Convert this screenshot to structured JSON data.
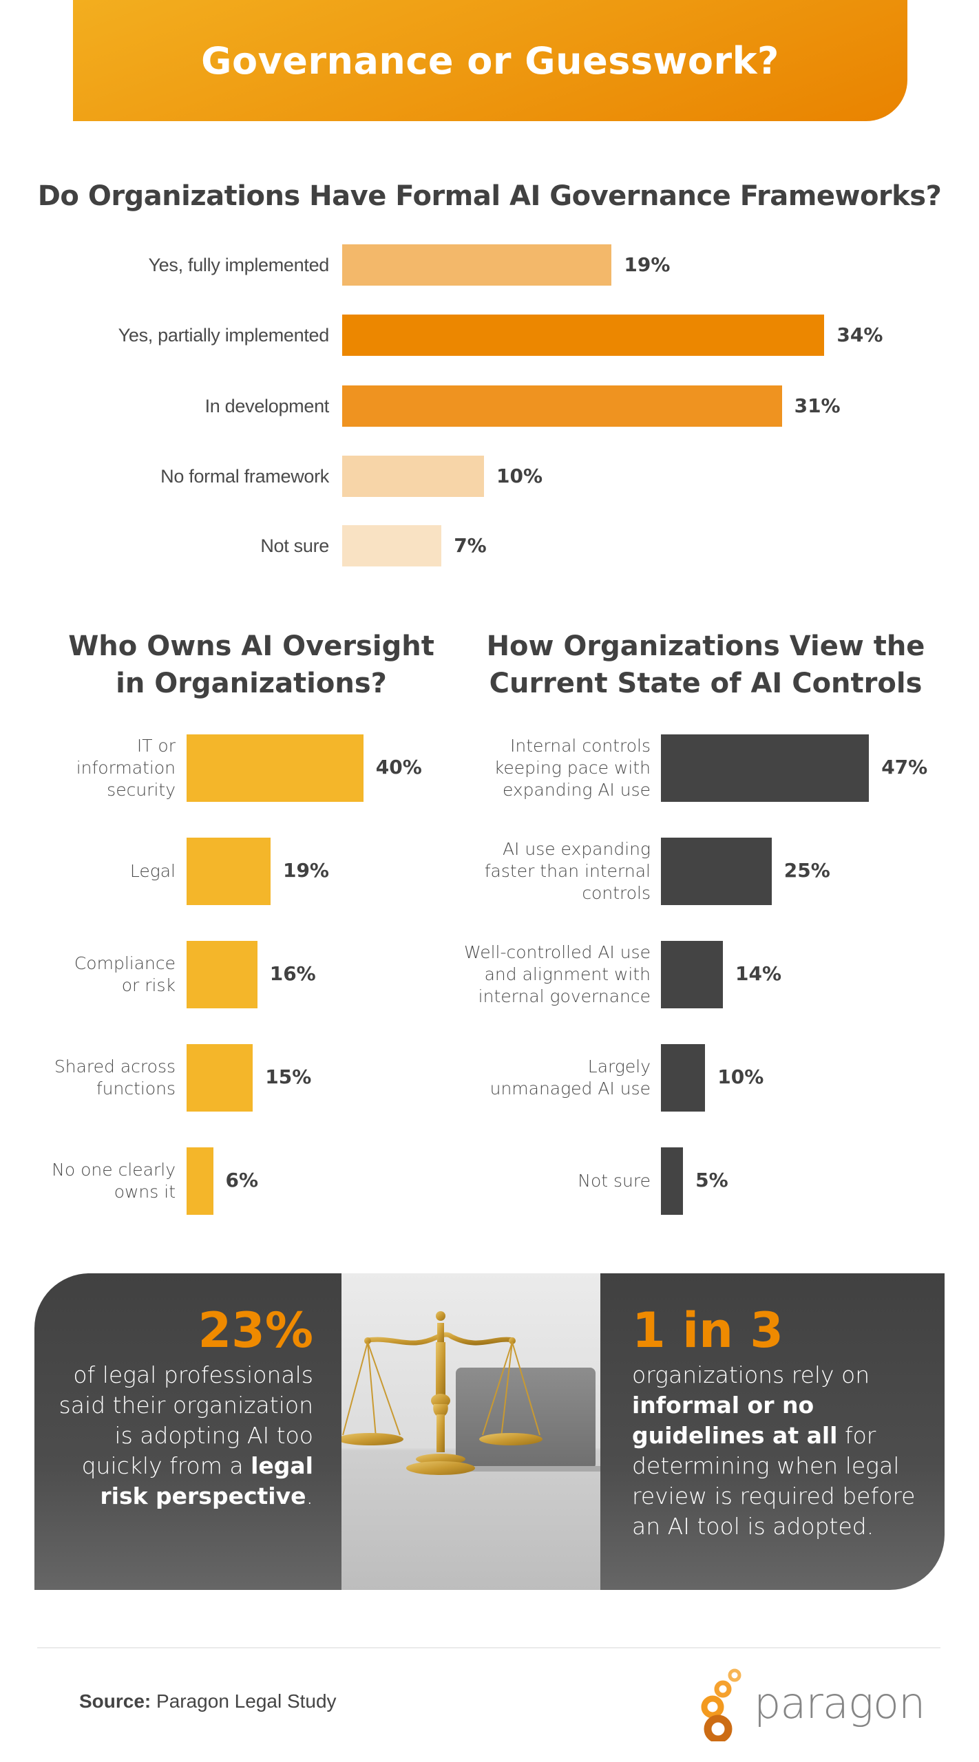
{
  "header": {
    "title": "Governance or Guesswork?",
    "gradient_start": "#f3ae1f",
    "gradient_end": "#e98300"
  },
  "chart_data": [
    {
      "type": "bar",
      "orientation": "horizontal",
      "title": "Do Organizations Have Formal AI Governance Frameworks?",
      "categories": [
        "Yes, fully implemented",
        "Yes, partially implemented",
        "In development",
        "No formal framework",
        "Not sure"
      ],
      "values": [
        19,
        34,
        31,
        10,
        7
      ],
      "value_labels": [
        "19%",
        "34%",
        "31%",
        "10%",
        "7%"
      ],
      "colors": [
        "#f3b86a",
        "#ec8700",
        "#ef9320",
        "#f7d5a8",
        "#f9e2c3"
      ],
      "xlabel": "",
      "ylabel": "",
      "unit": "%",
      "grid": false,
      "legend": "none"
    },
    {
      "type": "bar",
      "orientation": "horizontal",
      "title": "Who Owns AI Oversight in Organizations?",
      "categories": [
        "IT or information security",
        "Legal",
        "Compliance or risk",
        "Shared across functions",
        "No one clearly owns it"
      ],
      "values": [
        40,
        19,
        16,
        15,
        6
      ],
      "value_labels": [
        "40%",
        "19%",
        "16%",
        "15%",
        "6%"
      ],
      "color": "#f4b62a",
      "xlabel": "",
      "ylabel": "",
      "unit": "%",
      "grid": false,
      "legend": "none"
    },
    {
      "type": "bar",
      "orientation": "horizontal",
      "title": "How Organizations View the Current State of AI Controls",
      "categories": [
        "Internal controls keeping pace with expanding AI use",
        "AI use expanding faster than internal controls",
        "Well-controlled AI use and alignment with internal governance",
        "Largely unmanaged AI use",
        "Not sure"
      ],
      "values": [
        47,
        25,
        14,
        10,
        5
      ],
      "value_labels": [
        "47%",
        "25%",
        "14%",
        "10%",
        "5%"
      ],
      "color": "#444444",
      "xlabel": "",
      "ylabel": "",
      "unit": "%",
      "grid": false,
      "legend": "none"
    }
  ],
  "charts": {
    "c1": {
      "title": "Do Organizations Have Formal AI Governance Frameworks?",
      "rows": [
        {
          "label": "Yes, fully implemented",
          "value": "19%",
          "pct": 19,
          "color": "#f3b86a"
        },
        {
          "label": "Yes, partially implemented",
          "value": "34%",
          "pct": 34,
          "color": "#ec8700"
        },
        {
          "label": "In development",
          "value": "31%",
          "pct": 31,
          "color": "#ef9320"
        },
        {
          "label": "No formal framework",
          "value": "10%",
          "pct": 10,
          "color": "#f7d5a8"
        },
        {
          "label": "Not sure",
          "value": "7%",
          "pct": 7,
          "color": "#f9e2c3"
        }
      ]
    },
    "c2": {
      "title_line1": "Who Owns AI Oversight",
      "title_line2": "in Organizations?",
      "color": "#f4b62a",
      "rows": [
        {
          "label_lines": [
            "IT or",
            "information",
            "security"
          ],
          "value": "40%",
          "pct": 40
        },
        {
          "label_lines": [
            "Legal"
          ],
          "value": "19%",
          "pct": 19
        },
        {
          "label_lines": [
            "Compliance",
            "or risk"
          ],
          "value": "16%",
          "pct": 16
        },
        {
          "label_lines": [
            "Shared across",
            "functions"
          ],
          "value": "15%",
          "pct": 15
        },
        {
          "label_lines": [
            "No one clearly",
            "owns it"
          ],
          "value": "6%",
          "pct": 6
        }
      ]
    },
    "c3": {
      "title_line1": "How Organizations View the",
      "title_line2": "Current State of AI Controls",
      "color": "#444444",
      "rows": [
        {
          "label_lines": [
            "Internal controls",
            "keeping pace with",
            "expanding AI use"
          ],
          "value": "47%",
          "pct": 47
        },
        {
          "label_lines": [
            "AI use expanding",
            "faster than internal",
            "controls"
          ],
          "value": "25%",
          "pct": 25
        },
        {
          "label_lines": [
            "Well-controlled AI use",
            "and alignment with",
            "internal governance"
          ],
          "value": "14%",
          "pct": 14
        },
        {
          "label_lines": [
            "Largely",
            "unmanaged AI use"
          ],
          "value": "10%",
          "pct": 10
        },
        {
          "label_lines": [
            "Not sure"
          ],
          "value": "5%",
          "pct": 5
        }
      ]
    }
  },
  "stats": {
    "left": {
      "big": "23%",
      "lines": [
        {
          "text": "of legal professionals"
        },
        {
          "text": "said their organization"
        },
        {
          "text": "is adopting AI too"
        },
        {
          "pre": "quickly from a ",
          "bold": "legal"
        },
        {
          "bold": "risk perspective",
          "post": "."
        }
      ]
    },
    "image": {
      "description": "brass-scales-of-justice-and-laptop-photo"
    },
    "right": {
      "big": "1 in 3",
      "lines": [
        {
          "text": "organizations rely on"
        },
        {
          "bold": "informal or no"
        },
        {
          "bold": "guidelines at all",
          "post": " for"
        },
        {
          "text": "determining when legal"
        },
        {
          "text": "review is required before"
        },
        {
          "text": "an AI tool is adopted."
        }
      ]
    },
    "accent_color": "#ef8a00"
  },
  "footer": {
    "source_label": "Source:",
    "source_value": " Paragon Legal Study",
    "logo_text": "paragon",
    "logo_icon": "paragon-circles-icon"
  }
}
